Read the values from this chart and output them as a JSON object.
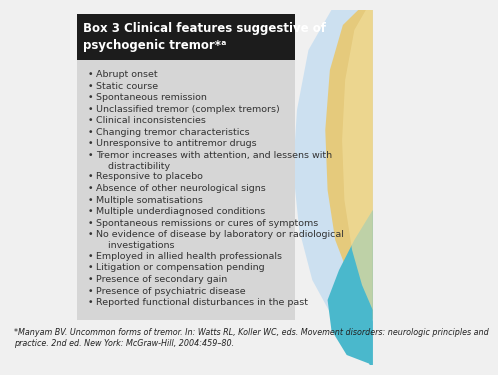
{
  "title_line1": "Box 3 Clinical features suggestive of",
  "title_line2": "psychogenic tremor*ᵃ",
  "title_bg": "#1c1c1c",
  "title_color": "#ffffff",
  "box_bg": "#d6d6d6",
  "page_bg": "#f0f0f0",
  "bullet_items": [
    "Abrupt onset",
    "Static course",
    "Spontaneous remission",
    "Unclassified tremor (complex tremors)",
    "Clinical inconsistencies",
    "Changing tremor characteristics",
    "Unresponsive to antitremor drugs",
    "Tremor increases with attention, and lessens with\n    distractibility",
    "Responsive to placebo",
    "Absence of other neurological signs",
    "Multiple somatisations",
    "Multiple underdiagnosed conditions",
    "Spontaneous remissions or cures of symptoms",
    "No evidence of disease by laboratory or radiological\n    investigations",
    "Employed in allied health professionals",
    "Litigation or compensation pending",
    "Presence of secondary gain",
    "Presence of psychiatric disease",
    "Reported functional disturbances in the past"
  ],
  "footnote": "*Manyam BV. Uncommon forms of tremor. In: Watts RL, Koller WC, eds. Movement disorders: neurologic principles and\npractice. 2nd ed. New York: McGraw-Hill, 2004:459–80.",
  "bullet_color": "#333333",
  "footnote_color": "#222222",
  "bullet_fontsize": 6.8,
  "title_fontsize": 8.5,
  "footnote_fontsize": 5.8,
  "teal_color": "#4ab8cc",
  "light_blue_color": "#c8dff0",
  "gold_color": "#e8c870",
  "light_gold_color": "#f0dc98"
}
